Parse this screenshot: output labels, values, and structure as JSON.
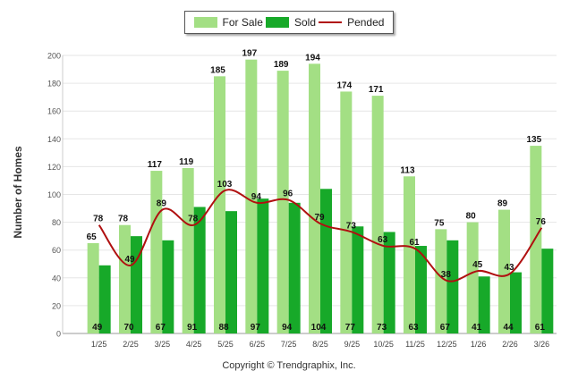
{
  "legend": {
    "for_sale": "For Sale",
    "sold": "Sold",
    "pended": "Pended"
  },
  "copyright": "Copyright © Trendgraphix, Inc.",
  "colors": {
    "for_sale": "#a3df84",
    "sold": "#17a929",
    "pended": "#b01010"
  },
  "chart_data": {
    "type": "bar",
    "title": "",
    "xlabel": "",
    "ylabel": "Number of Homes",
    "ylim": [
      0,
      200
    ],
    "yticks": [
      0,
      20,
      40,
      60,
      80,
      100,
      120,
      140,
      160,
      180,
      200
    ],
    "categories": [
      "1/25",
      "2/25",
      "3/25",
      "4/25",
      "5/25",
      "6/25",
      "7/25",
      "8/25",
      "9/25",
      "10/25",
      "11/25",
      "12/25",
      "1/26",
      "2/26",
      "3/26"
    ],
    "series": [
      {
        "name": "For Sale",
        "type": "bar",
        "values": [
          65,
          78,
          117,
          119,
          185,
          197,
          189,
          194,
          174,
          171,
          113,
          75,
          80,
          89,
          135
        ]
      },
      {
        "name": "Sold",
        "type": "bar",
        "values": [
          49,
          70,
          67,
          91,
          88,
          97,
          94,
          104,
          77,
          73,
          63,
          67,
          41,
          44,
          61
        ]
      },
      {
        "name": "Pended",
        "type": "line",
        "values": [
          78,
          49,
          89,
          78,
          103,
          94,
          96,
          79,
          73,
          63,
          61,
          38,
          45,
          43,
          76
        ]
      }
    ]
  }
}
